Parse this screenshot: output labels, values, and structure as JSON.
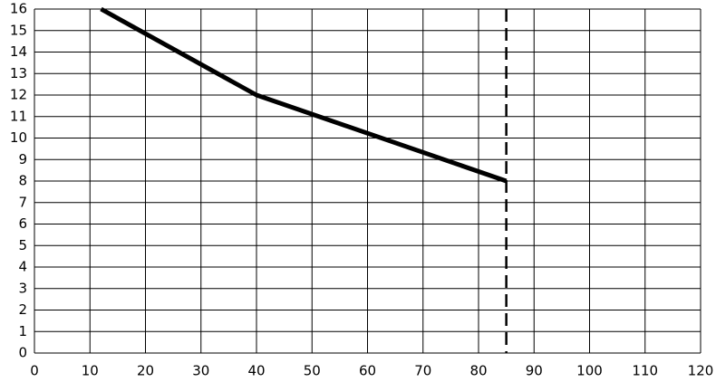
{
  "chart_data": {
    "type": "line",
    "x": [
      12,
      40,
      85
    ],
    "series": [
      {
        "color": "#000000",
        "values": [
          16,
          12,
          8
        ]
      }
    ],
    "vlines": [
      85
    ],
    "xlim": [
      0,
      120
    ],
    "xticks": [
      0,
      10,
      20,
      30,
      40,
      50,
      60,
      70,
      80,
      90,
      100,
      110,
      120
    ],
    "ylim": [
      0,
      16
    ],
    "yticks": [
      0,
      1,
      2,
      3,
      4,
      5,
      6,
      7,
      8,
      9,
      10,
      11,
      12,
      13,
      14,
      15,
      16
    ],
    "grid": true
  }
}
